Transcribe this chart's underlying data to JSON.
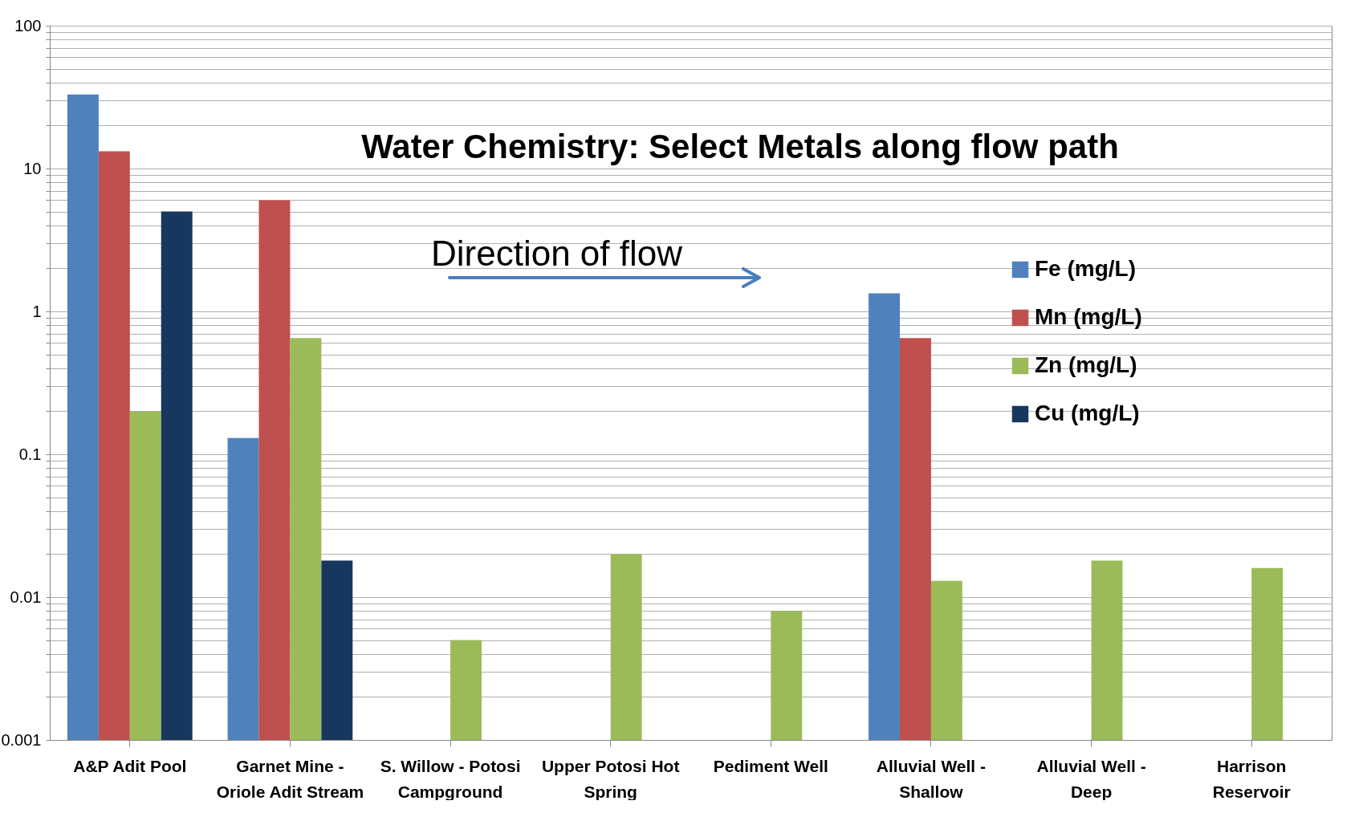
{
  "chart_data": {
    "type": "bar",
    "title": "Water Chemistry: Select Metals along flow path",
    "annotations": [
      "Direction of flow"
    ],
    "categories": [
      "A&P Adit Pool",
      "Garnet Mine - Oriole Adit Stream",
      "S. Willow - Potosi Campground",
      "Upper Potosi Hot Spring",
      "Pediment Well",
      "Alluvial Well - Shallow",
      "Alluvial Well - Deep",
      "Harrison Reservoir"
    ],
    "series": [
      {
        "name": "Fe (mg/L)",
        "color": "#4f81bd",
        "values": [
          33,
          0.13,
          null,
          null,
          null,
          1.34,
          null,
          null
        ]
      },
      {
        "name": "Mn (mg/L)",
        "color": "#c0504d",
        "values": [
          13.2,
          6,
          null,
          null,
          null,
          0.65,
          null,
          null
        ]
      },
      {
        "name": "Zn (mg/L)",
        "color": "#9bbb59",
        "values": [
          0.2,
          0.65,
          0.005,
          0.02,
          0.008,
          0.013,
          0.018,
          0.016
        ]
      },
      {
        "name": "Cu (mg/L)",
        "color": "#17375e",
        "values": [
          5,
          0.018,
          null,
          null,
          null,
          null,
          null,
          null
        ]
      }
    ],
    "log": true,
    "ylim": [
      0.001,
      100
    ],
    "yticks": [
      0.001,
      {
        "value": 0.002,
        "label": null
      },
      {
        "value": 0.003,
        "label": null
      },
      {
        "value": 0.004,
        "label": null
      },
      {
        "value": 0.005,
        "label": null
      },
      {
        "value": 0.006,
        "label": null
      },
      {
        "value": 0.007,
        "label": null
      },
      {
        "value": 0.008,
        "label": null
      },
      {
        "value": 0.009,
        "label": null
      },
      0.01,
      {
        "value": 0.02,
        "label": null
      },
      {
        "value": 0.03,
        "label": null
      },
      {
        "value": 0.04,
        "label": null
      },
      {
        "value": 0.05,
        "label": null
      },
      {
        "value": 0.06,
        "label": null
      },
      {
        "value": 0.07,
        "label": null
      },
      {
        "value": 0.08,
        "label": null
      },
      {
        "value": 0.09,
        "label": null
      },
      0.1,
      {
        "value": 0.2,
        "label": null
      },
      {
        "value": 0.3,
        "label": null
      },
      {
        "value": 0.4,
        "label": null
      },
      {
        "value": 0.5,
        "label": null
      },
      {
        "value": 0.6,
        "label": null
      },
      {
        "value": 0.7,
        "label": null
      },
      {
        "value": 0.8,
        "label": null
      },
      {
        "value": 0.9,
        "label": null
      },
      1,
      {
        "value": 2,
        "label": null
      },
      {
        "value": 3,
        "label": null
      },
      {
        "value": 4,
        "label": null
      },
      {
        "value": 5,
        "label": null
      },
      {
        "value": 6,
        "label": null
      },
      {
        "value": 7,
        "label": null
      },
      {
        "value": 8,
        "label": null
      },
      {
        "value": 9,
        "label": null
      },
      10,
      {
        "value": 20,
        "label": null
      },
      {
        "value": 30,
        "label": null
      },
      {
        "value": 40,
        "label": null
      },
      {
        "value": 50,
        "label": null
      },
      {
        "value": 60,
        "label": null
      },
      {
        "value": 70,
        "label": null
      },
      {
        "value": 80,
        "label": null
      },
      {
        "value": 90,
        "label": null
      },
      100
    ],
    "grid": true,
    "legend": "right"
  }
}
